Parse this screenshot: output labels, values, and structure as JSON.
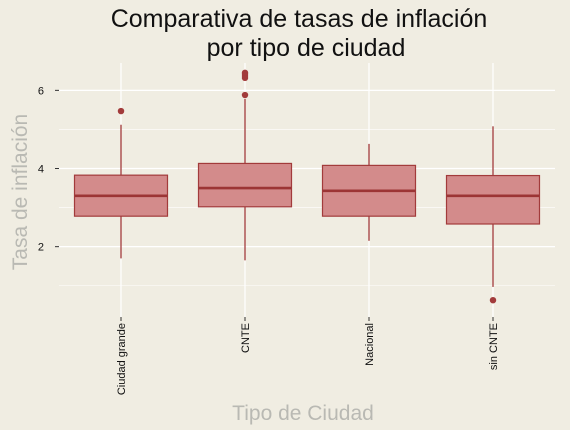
{
  "chart_data": {
    "type": "boxplot",
    "title": [
      "Comparativa de tasas de inflación",
      "por tipo de ciudad"
    ],
    "xlabel": "Tipo de Ciudad",
    "ylabel": "Tasa de inflación",
    "ylim": [
      0.2,
      6.7
    ],
    "yticks": [
      2,
      4,
      6
    ],
    "grid": true,
    "colors": {
      "fill": "#d38b8b",
      "stroke": "#a23b3b",
      "median": "#9c3535",
      "background": "#f0ede2",
      "grid": "#ffffff"
    },
    "categories": [
      "Ciudad grande",
      "CNTE",
      "Nacional",
      "sin CNTE"
    ],
    "boxes": [
      {
        "category": "Ciudad grande",
        "whisker_low": 1.7,
        "q1": 2.78,
        "median": 3.3,
        "q3": 3.83,
        "whisker_high": 5.12,
        "outliers": [
          5.47
        ]
      },
      {
        "category": "CNTE",
        "whisker_low": 1.65,
        "q1": 3.02,
        "median": 3.5,
        "q3": 4.13,
        "whisker_high": 5.78,
        "outliers": [
          5.88,
          6.32,
          6.37,
          6.42,
          6.45
        ]
      },
      {
        "category": "Nacional",
        "whisker_low": 2.15,
        "q1": 2.78,
        "median": 3.43,
        "q3": 4.08,
        "whisker_high": 4.63,
        "outliers": []
      },
      {
        "category": "sin CNTE",
        "whisker_low": 0.97,
        "q1": 2.58,
        "median": 3.3,
        "q3": 3.82,
        "whisker_high": 5.08,
        "outliers": [
          0.63
        ]
      }
    ]
  }
}
